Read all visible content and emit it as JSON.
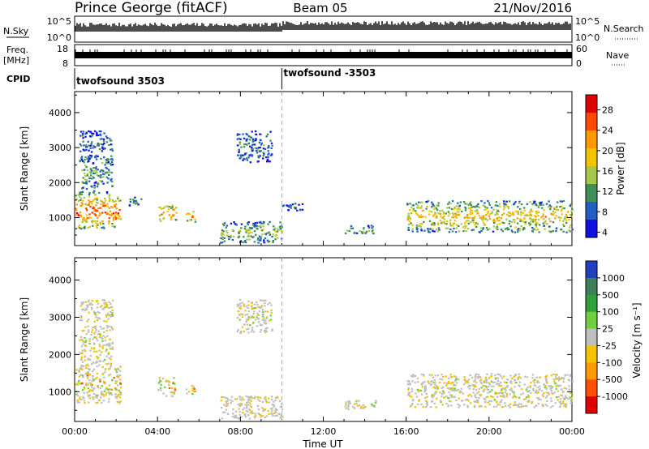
{
  "header": {
    "station": "Prince George (fitACF)",
    "beam": "Beam 05",
    "date": "21/Nov/2016"
  },
  "top_panels": {
    "nsky_label": "N.Sky",
    "nsky_ticks": [
      "10^5",
      "10^0"
    ],
    "nsearch_label": "N.Search",
    "nsearch_ticks": [
      "10^5",
      "10^0"
    ],
    "freq_label": "Freq.",
    "freq_unit": "[MHz]",
    "freq_ticks": [
      "18",
      "8"
    ],
    "nave_label": "Nave",
    "nave_ticks": [
      "60",
      "0"
    ],
    "cpid_label": "CPID",
    "cpid_entries": [
      "twofsound 3503",
      "twofsound -3503"
    ],
    "cpid_change_hour": 10
  },
  "chart_data": [
    {
      "type": "heatmap",
      "name": "Power",
      "colorbar_label": "Power [dB]",
      "colorbar_ticks": [
        "28",
        "24",
        "20",
        "16",
        "12",
        "8",
        "4"
      ],
      "colorbar_colors": [
        "#e00000",
        "#ff4a00",
        "#ff9a00",
        "#f5c400",
        "#a6c84c",
        "#3f8f58",
        "#2060c0",
        "#1010e0"
      ],
      "ylabel": "Slant Range [km]",
      "ylim": [
        200,
        4600
      ],
      "yticks": [
        1000,
        2000,
        3000,
        4000
      ],
      "xlim": [
        0,
        24
      ],
      "xticks": [
        0,
        4,
        8,
        12,
        16,
        20,
        24
      ],
      "echo_regions": [
        {
          "t0": 0.0,
          "t1": 2.2,
          "r0": 700,
          "r1": 1700,
          "level": 0.85
        },
        {
          "t0": 0.2,
          "t1": 1.8,
          "r0": 1700,
          "r1": 2800,
          "level": 0.35
        },
        {
          "t0": 0.2,
          "t1": 1.8,
          "r0": 2900,
          "r1": 3500,
          "level": 0.25
        },
        {
          "t0": 2.6,
          "t1": 3.2,
          "r0": 1350,
          "r1": 1600,
          "level": 0.3
        },
        {
          "t0": 4.0,
          "t1": 4.9,
          "r0": 900,
          "r1": 1400,
          "level": 0.75
        },
        {
          "t0": 5.3,
          "t1": 5.8,
          "r0": 900,
          "r1": 1200,
          "level": 0.75
        },
        {
          "t0": 7.8,
          "t1": 9.5,
          "r0": 2600,
          "r1": 3500,
          "level": 0.25
        },
        {
          "t0": 7.0,
          "t1": 10.0,
          "r0": 300,
          "r1": 900,
          "level": 0.45
        },
        {
          "t0": 10.0,
          "t1": 11.0,
          "r0": 1200,
          "r1": 1450,
          "level": 0.2
        },
        {
          "t0": 13.0,
          "t1": 14.5,
          "r0": 550,
          "r1": 800,
          "level": 0.4
        },
        {
          "t0": 16.0,
          "t1": 24.0,
          "r0": 600,
          "r1": 1500,
          "level": 0.6
        }
      ]
    },
    {
      "type": "heatmap",
      "name": "Velocity",
      "colorbar_label": "Velocity [m s⁻¹]",
      "colorbar_ticks": [
        "1000",
        "500",
        "100",
        "25",
        "-25",
        "-100",
        "-500",
        "-1000"
      ],
      "colorbar_colors": [
        "#2040c0",
        "#3f7f5a",
        "#2fa03a",
        "#70d040",
        "#c0c0c0",
        "#f5c400",
        "#ff9a00",
        "#ff5000",
        "#e00000"
      ],
      "ylabel": "Slant Range [km]",
      "xlabel": "Time UT",
      "xticklabels": [
        "00:00",
        "04:00",
        "08:00",
        "12:00",
        "16:00",
        "20:00",
        "00:00"
      ],
      "ylim": [
        200,
        4600
      ],
      "yticks": [
        1000,
        2000,
        3000,
        4000
      ],
      "xlim": [
        0,
        24
      ],
      "xticks": [
        0,
        4,
        8,
        12,
        16,
        20,
        24
      ],
      "echo_regions": [
        {
          "t0": 0.0,
          "t1": 2.2,
          "r0": 700,
          "r1": 1700,
          "level": 0.8
        },
        {
          "t0": 0.2,
          "t1": 1.8,
          "r0": 1700,
          "r1": 2800,
          "level": 0.5
        },
        {
          "t0": 0.2,
          "t1": 1.8,
          "r0": 2900,
          "r1": 3500,
          "level": 0.5
        },
        {
          "t0": 4.0,
          "t1": 4.9,
          "r0": 900,
          "r1": 1400,
          "level": 0.8
        },
        {
          "t0": 5.3,
          "t1": 5.8,
          "r0": 900,
          "r1": 1200,
          "level": 0.8
        },
        {
          "t0": 7.8,
          "t1": 9.5,
          "r0": 2600,
          "r1": 3500,
          "level": 0.5
        },
        {
          "t0": 7.0,
          "t1": 10.0,
          "r0": 300,
          "r1": 900,
          "level": 0.3
        },
        {
          "t0": 13.0,
          "t1": 14.5,
          "r0": 550,
          "r1": 800,
          "level": 0.4
        },
        {
          "t0": 16.0,
          "t1": 24.0,
          "r0": 600,
          "r1": 1500,
          "level": 0.5
        }
      ]
    }
  ]
}
